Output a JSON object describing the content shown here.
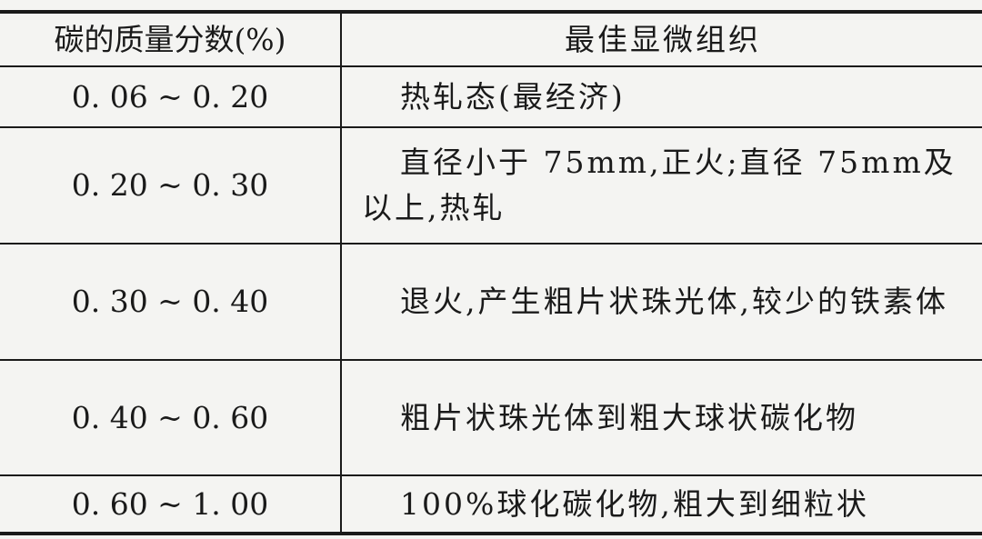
{
  "table": {
    "headers": [
      "碳的质量分数(%)",
      "最佳显微组织"
    ],
    "rows": [
      {
        "carbon": "0. 06 ~ 0. 20",
        "structure": "热轧态(最经济)"
      },
      {
        "carbon": "0. 20 ~ 0. 30",
        "structure": "直径小于 75mm,正火;直径 75mm及以上,热轧"
      },
      {
        "carbon": "0. 30 ~ 0. 40",
        "structure": "退火,产生粗片状珠光体,较少的铁素体"
      },
      {
        "carbon": "0. 40 ~ 0. 60",
        "structure": "粗片状珠光体到粗大球状碳化物"
      },
      {
        "carbon": "0. 60 ~ 1. 00",
        "structure": "100%球化碳化物,粗大到细粒状"
      }
    ]
  }
}
